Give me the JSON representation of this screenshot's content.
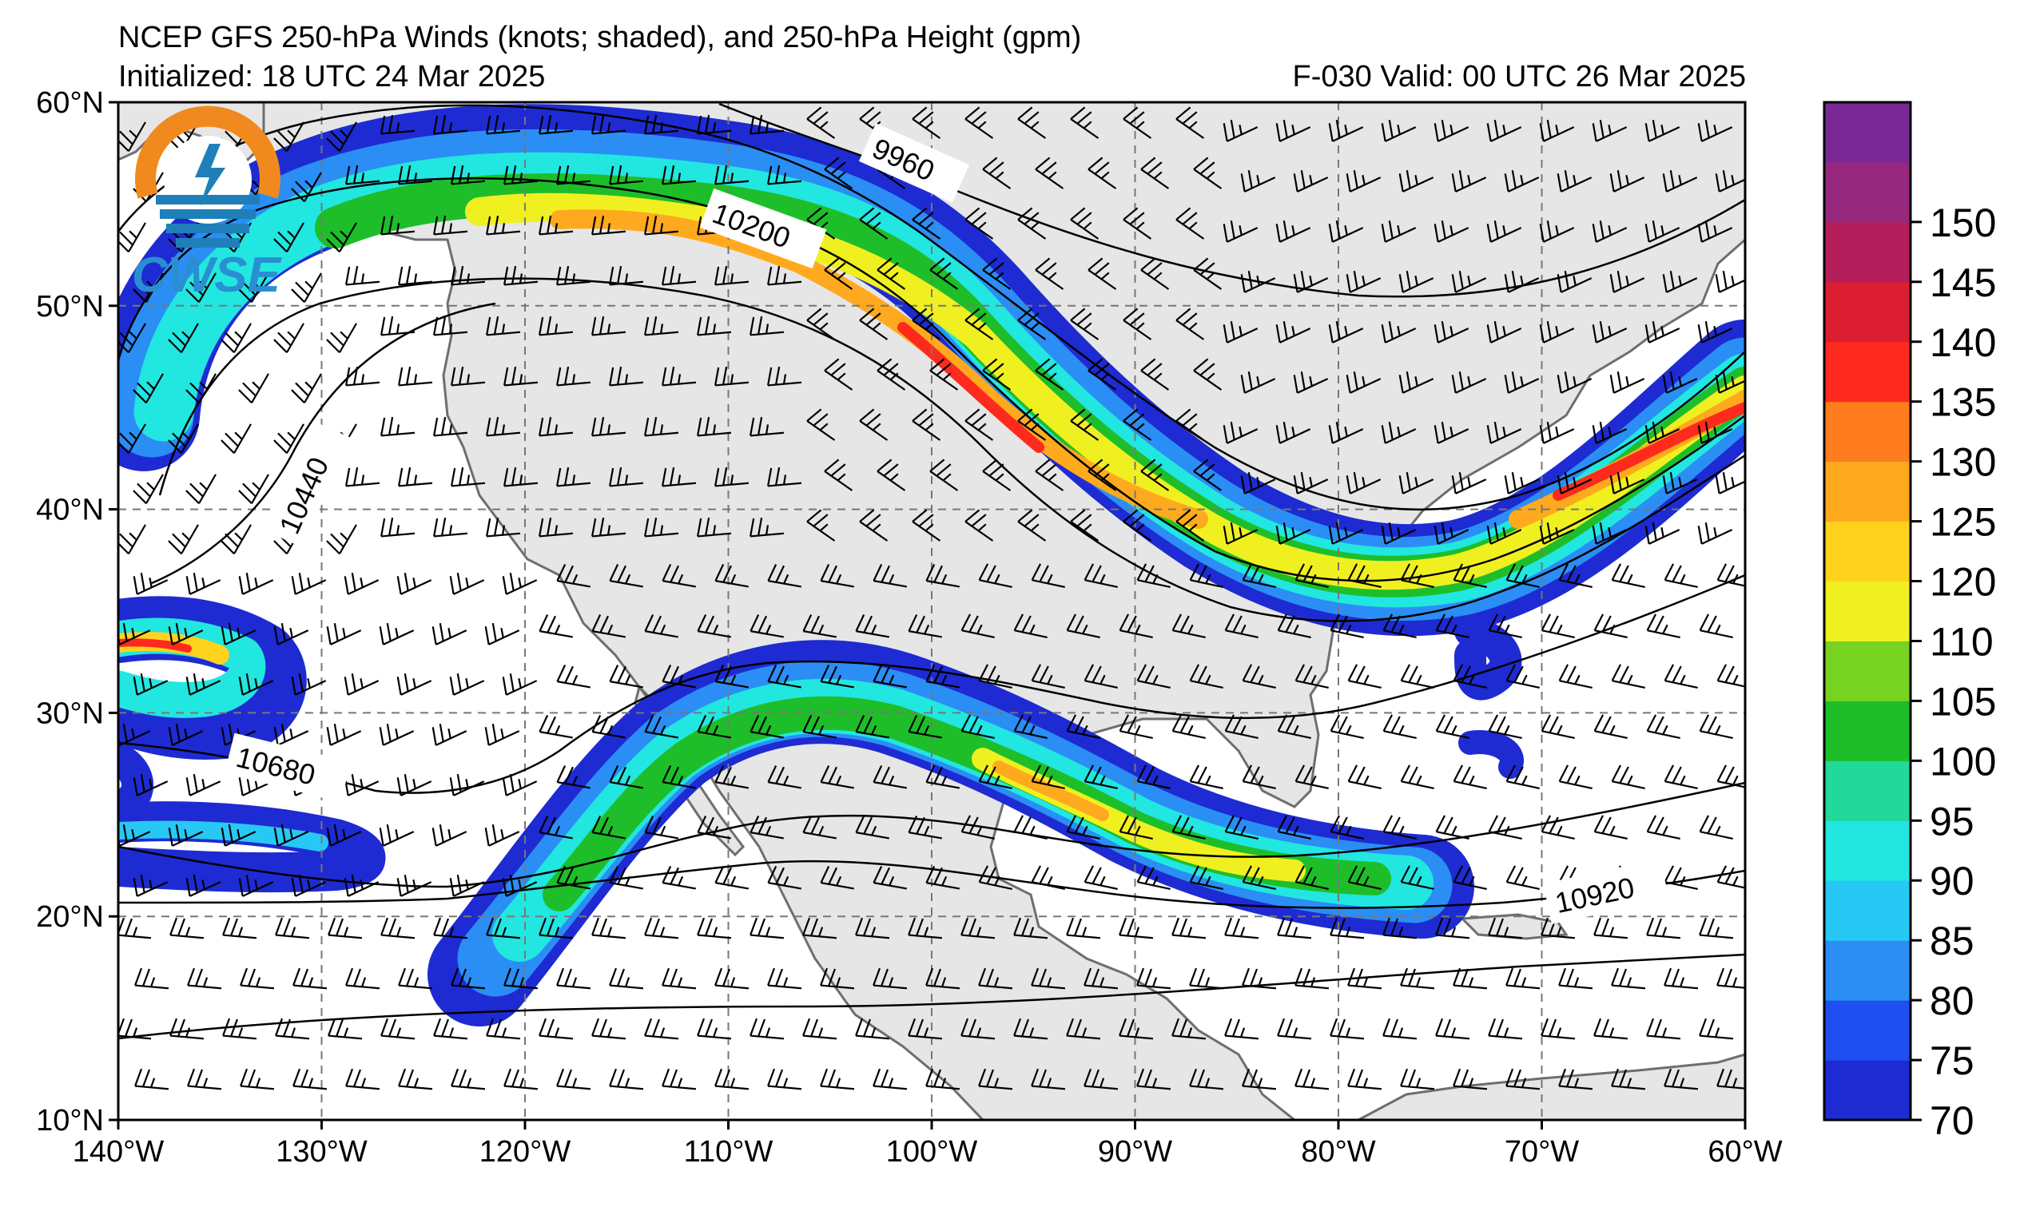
{
  "header": {
    "title": "NCEP GFS 250-hPa Winds (knots; shaded), and 250-hPa Height (gpm)",
    "initialized": "Initialized: 18 UTC 24 Mar 2025",
    "valid": "F-030  Valid: 00 UTC 26 Mar 2025"
  },
  "logo": {
    "text": "CWSE",
    "ring_color": "#f08a1e",
    "wave_color": "#1f7fb8"
  },
  "map": {
    "lat_range": [
      10,
      60
    ],
    "lon_range": [
      -140,
      -60
    ],
    "lat_ticks": [
      {
        "value": 60,
        "label": "60°N"
      },
      {
        "value": 50,
        "label": "50°N"
      },
      {
        "value": 40,
        "label": "40°N"
      },
      {
        "value": 30,
        "label": "30°N"
      },
      {
        "value": 20,
        "label": "20°N"
      },
      {
        "value": 10,
        "label": "10°N"
      }
    ],
    "lon_ticks": [
      {
        "value": -140,
        "label": "140°W"
      },
      {
        "value": -130,
        "label": "130°W"
      },
      {
        "value": -120,
        "label": "120°W"
      },
      {
        "value": -110,
        "label": "110°W"
      },
      {
        "value": -100,
        "label": "100°W"
      },
      {
        "value": -90,
        "label": "90°W"
      },
      {
        "value": -80,
        "label": "80°W"
      },
      {
        "value": -70,
        "label": "70°W"
      },
      {
        "value": -60,
        "label": "60°W"
      }
    ],
    "gridlines": true,
    "land_color": "#e6e6e6",
    "ocean_color": "#ffffff"
  },
  "height_contours": [
    {
      "value": 9960,
      "label": "9960"
    },
    {
      "value": 10200,
      "label": "10200"
    },
    {
      "value": 10440,
      "label": "10440"
    },
    {
      "value": 10680,
      "label": "10680"
    },
    {
      "value": 10920,
      "label": "10920"
    }
  ],
  "colorbar": {
    "levels": [
      70,
      75,
      80,
      85,
      90,
      95,
      100,
      105,
      110,
      120,
      125,
      130,
      135,
      140,
      145,
      150,
      155
    ],
    "colors": [
      "#1e2bd2",
      "#1f4ff0",
      "#2a8ef5",
      "#28c8f5",
      "#22e6e0",
      "#22d89a",
      "#1ebe2a",
      "#78d220",
      "#f0f020",
      "#ffd21e",
      "#ffaa1e",
      "#ff7d1e",
      "#ff2a1e",
      "#dc1e32",
      "#b41e5a",
      "#96287e",
      "#7a2896"
    ],
    "tick_labels": [
      "70",
      "75",
      "80",
      "85",
      "90",
      "95",
      "100",
      "105",
      "110",
      "120",
      "125",
      "130",
      "135",
      "140",
      "145",
      "150"
    ]
  }
}
